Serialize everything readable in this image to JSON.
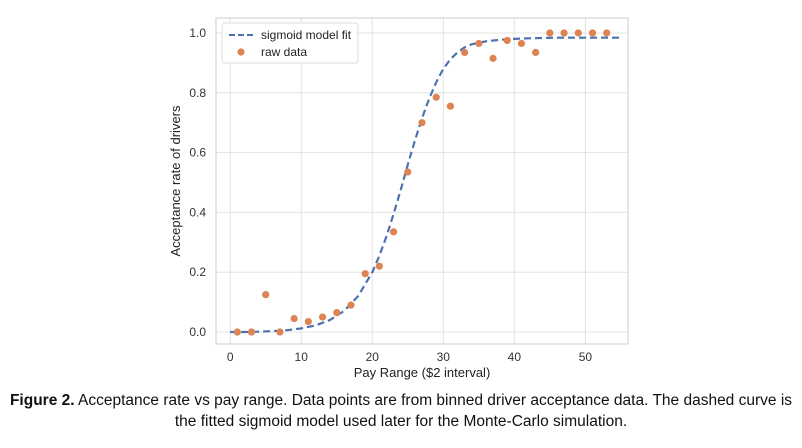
{
  "chart_data": {
    "type": "scatter",
    "xlabel": "Pay Range ($2 interval)",
    "ylabel": "Acceptance rate of drivers",
    "xlim": [
      -2,
      56
    ],
    "ylim": [
      -0.04,
      1.05
    ],
    "x_ticks": [
      0,
      10,
      20,
      30,
      40,
      50
    ],
    "y_ticks": [
      0.0,
      0.2,
      0.4,
      0.6,
      0.8,
      1.0
    ],
    "x_tick_labels": [
      "0",
      "10",
      "20",
      "30",
      "40",
      "50"
    ],
    "y_tick_labels": [
      "0.0",
      "0.2",
      "0.4",
      "0.6",
      "0.8",
      "1.0"
    ],
    "grid": true,
    "legend_position": "top-left",
    "series": [
      {
        "name": "sigmoid model fit",
        "kind": "line",
        "style": "dashed",
        "color": "#4c72b0",
        "x": [
          0,
          2,
          4,
          6,
          8,
          10,
          12,
          14,
          16,
          18,
          20,
          21,
          22,
          23,
          24,
          25,
          26,
          27,
          28,
          29,
          30,
          31,
          32,
          33,
          34,
          36,
          38,
          40,
          42,
          44,
          46,
          48,
          50,
          52,
          55
        ],
        "y": [
          0.0,
          0.0,
          0.001,
          0.003,
          0.006,
          0.012,
          0.022,
          0.04,
          0.07,
          0.12,
          0.2,
          0.255,
          0.32,
          0.395,
          0.475,
          0.56,
          0.64,
          0.715,
          0.78,
          0.835,
          0.88,
          0.912,
          0.935,
          0.952,
          0.962,
          0.972,
          0.977,
          0.98,
          0.982,
          0.983,
          0.984,
          0.984,
          0.984,
          0.984,
          0.984
        ]
      },
      {
        "name": "raw data",
        "kind": "scatter",
        "color": "#dd8452",
        "x": [
          1,
          3,
          5,
          7,
          9,
          11,
          13,
          15,
          17,
          19,
          21,
          23,
          25,
          27,
          29,
          31,
          33,
          35,
          37,
          39,
          41,
          43,
          45,
          47,
          49,
          51,
          53
        ],
        "y": [
          0.0,
          0.0,
          0.125,
          0.0,
          0.045,
          0.035,
          0.05,
          0.065,
          0.09,
          0.195,
          0.22,
          0.335,
          0.535,
          0.7,
          0.785,
          0.755,
          0.935,
          0.965,
          0.915,
          0.975,
          0.965,
          0.935,
          1.0,
          1.0,
          1.0,
          1.0,
          1.0
        ]
      }
    ]
  },
  "caption": {
    "label": "Figure 2.",
    "text": " Acceptance rate vs pay range. Data points are from binned driver acceptance data. The dashed curve is the fitted sigmoid model used later for the Monte-Carlo simulation."
  }
}
